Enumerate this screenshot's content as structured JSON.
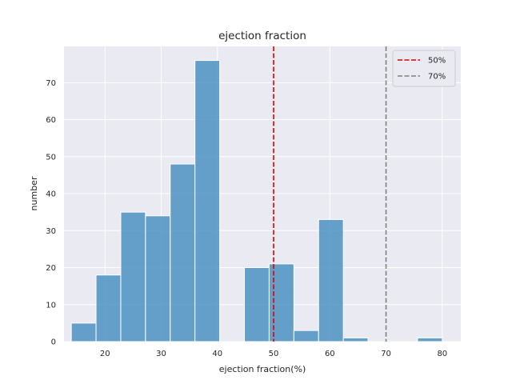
{
  "chart_data": {
    "type": "bar",
    "title": "ejection fraction",
    "xlabel": "ejection fraction(%)",
    "ylabel": "number",
    "xlim": [
      12.7,
      83.3
    ],
    "ylim": [
      0,
      79.8
    ],
    "xticks": [
      20,
      30,
      40,
      50,
      60,
      70,
      80
    ],
    "yticks": [
      0,
      10,
      20,
      30,
      40,
      50,
      60,
      70
    ],
    "grid": true,
    "bar_color": "#4c92c3",
    "bins": [
      {
        "x0": 14.0,
        "x1": 18.4,
        "value": 5
      },
      {
        "x0": 18.4,
        "x1": 22.8,
        "value": 18
      },
      {
        "x0": 22.8,
        "x1": 27.2,
        "value": 35
      },
      {
        "x0": 27.2,
        "x1": 31.6,
        "value": 34
      },
      {
        "x0": 31.6,
        "x1": 36.0,
        "value": 48
      },
      {
        "x0": 36.0,
        "x1": 40.4,
        "value": 76
      },
      {
        "x0": 40.4,
        "x1": 44.8,
        "value": 0
      },
      {
        "x0": 44.8,
        "x1": 49.2,
        "value": 20
      },
      {
        "x0": 49.2,
        "x1": 53.6,
        "value": 21
      },
      {
        "x0": 53.6,
        "x1": 58.0,
        "value": 3
      },
      {
        "x0": 58.0,
        "x1": 62.4,
        "value": 33
      },
      {
        "x0": 62.4,
        "x1": 66.8,
        "value": 1
      },
      {
        "x0": 66.8,
        "x1": 71.2,
        "value": 0
      },
      {
        "x0": 71.2,
        "x1": 75.6,
        "value": 0
      },
      {
        "x0": 75.6,
        "x1": 80.0,
        "value": 1
      }
    ],
    "reference_lines": [
      {
        "x": 50,
        "label": "50%",
        "color": "#dd0000"
      },
      {
        "x": 70,
        "label": "70%",
        "color": "#808080"
      }
    ],
    "legend": {
      "placement": "top-right"
    }
  }
}
